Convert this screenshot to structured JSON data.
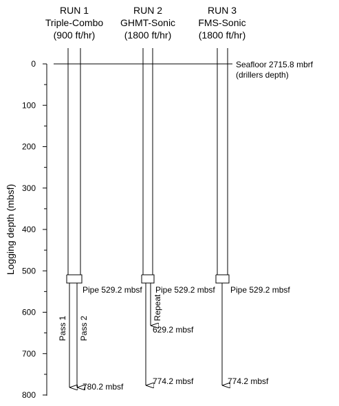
{
  "runs": [
    {
      "name": "RUN 1",
      "tool": "Triple-Combo",
      "speed": "(900 ft/hr)",
      "pipe": "Pipe 529.2 mbsf",
      "passes": [
        "Pass 1",
        "Pass 2"
      ],
      "end": "780.2 mbsf"
    },
    {
      "name": "RUN 2",
      "tool": "GHMT-Sonic",
      "speed": "(1800 ft/hr)",
      "pipe": "Pipe 529.2 mbsf",
      "repeat": "Repeat",
      "repeat_end": "629.2 mbsf",
      "end": "774.2 mbsf"
    },
    {
      "name": "RUN 3",
      "tool": "FMS-Sonic",
      "speed": "(1800 ft/hr)",
      "pipe": "Pipe 529.2 mbsf",
      "end": "774.2 mbsf"
    }
  ],
  "seafloor": {
    "label": "Seafloor 2715.8 mbrf",
    "note": "(drillers depth)"
  },
  "axis": {
    "label": "Logging depth (mbsf)",
    "ticks": [
      0,
      100,
      200,
      300,
      400,
      500,
      600,
      700,
      800
    ],
    "lim": [
      0,
      800
    ]
  }
}
